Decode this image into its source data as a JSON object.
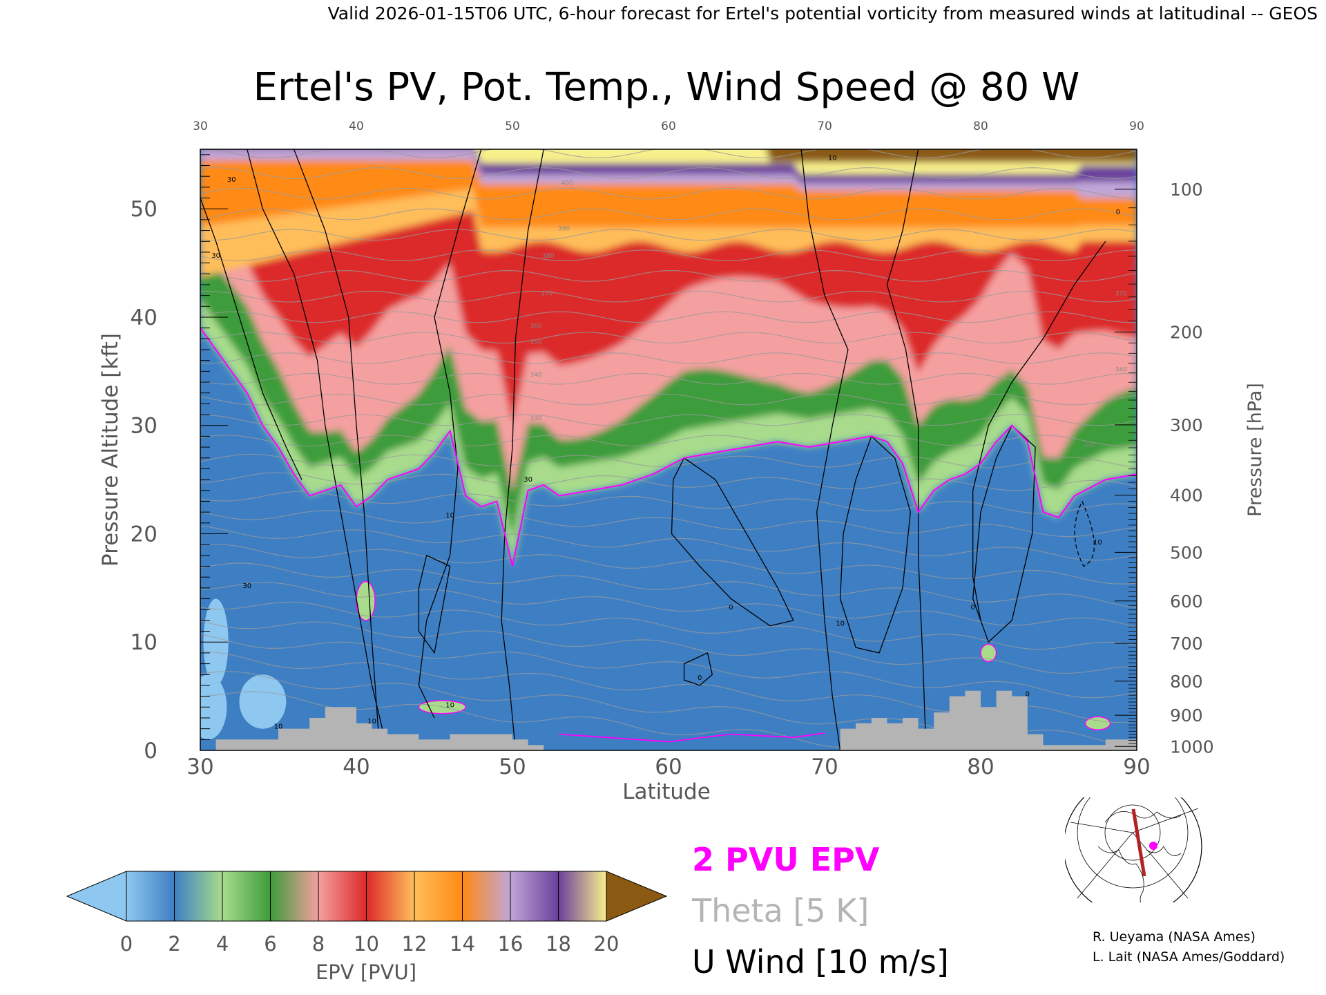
{
  "header": {
    "valid_line": "Valid 2026-01-15T06 UTC, 6-hour forecast for Ertel's potential vorticity from measured winds at latitudinal -- GEOS"
  },
  "chart_data": {
    "type": "heatmap",
    "title": "Ertel's PV, Pot. Temp., Wind Speed @ 80 W",
    "xlabel": "Latitude",
    "ylabel": "Pressure Altitude [kft]",
    "ylabel_right": "Pressure [hPa]",
    "xlim": [
      30,
      90
    ],
    "ylim": [
      0,
      55.5
    ],
    "x_ticks": [
      "30",
      "40",
      "50",
      "60",
      "70",
      "80",
      "90"
    ],
    "x_ticks_top": [
      "30",
      "40",
      "50",
      "60",
      "70",
      "80",
      "90"
    ],
    "y_ticks": [
      "0",
      "10",
      "20",
      "30",
      "40",
      "50"
    ],
    "pressure_ticks": [
      {
        "hpa": 100,
        "label": "100"
      },
      {
        "hpa": 200,
        "label": "200"
      },
      {
        "hpa": 300,
        "label": "300"
      },
      {
        "hpa": 400,
        "label": "400"
      },
      {
        "hpa": 500,
        "label": "500"
      },
      {
        "hpa": 600,
        "label": "600"
      },
      {
        "hpa": 700,
        "label": "700"
      },
      {
        "hpa": 800,
        "label": "800"
      },
      {
        "hpa": 900,
        "label": "900"
      },
      {
        "hpa": 1000,
        "label": "1000"
      }
    ],
    "epv_colors": [
      "#8ec8f0",
      "#3e7fc4",
      "#a8dc8c",
      "#3d9c3a",
      "#f5a0a0",
      "#dc2a2a",
      "#ffbe5a",
      "#ff8a14",
      "#c0a6d8",
      "#6a3f9c",
      "#f8f08c",
      "#8a5a12"
    ],
    "epv_levels": [
      0,
      2,
      4,
      6,
      8,
      10,
      12,
      14,
      16,
      18,
      20
    ],
    "epv_2pvu_height_kft": [
      [
        30,
        39
      ],
      [
        31,
        37
      ],
      [
        32,
        35
      ],
      [
        33,
        33
      ],
      [
        34,
        30
      ],
      [
        35,
        28
      ],
      [
        36,
        25.5
      ],
      [
        37,
        23.5
      ],
      [
        38,
        24
      ],
      [
        39,
        24.5
      ],
      [
        40,
        22.5
      ],
      [
        41,
        23.5
      ],
      [
        42,
        25
      ],
      [
        43,
        25.5
      ],
      [
        44,
        26
      ],
      [
        45,
        27.5
      ],
      [
        46,
        29.5
      ],
      [
        47,
        23.5
      ],
      [
        48,
        22.5
      ],
      [
        49,
        23
      ],
      [
        50,
        17
      ],
      [
        51,
        24
      ],
      [
        52,
        24.5
      ],
      [
        53,
        23.5
      ],
      [
        55,
        24
      ],
      [
        57,
        24.5
      ],
      [
        59,
        25.5
      ],
      [
        61,
        27
      ],
      [
        63,
        27.5
      ],
      [
        65,
        28
      ],
      [
        67,
        28.5
      ],
      [
        69,
        28
      ],
      [
        71,
        28.5
      ],
      [
        73,
        29
      ],
      [
        74,
        28.5
      ],
      [
        75,
        26.5
      ],
      [
        76,
        22
      ],
      [
        77,
        24
      ],
      [
        78,
        25
      ],
      [
        79,
        25.5
      ],
      [
        80,
        26.5
      ],
      [
        81,
        28.5
      ],
      [
        82,
        30
      ],
      [
        83,
        28.5
      ],
      [
        84,
        22
      ],
      [
        85,
        21.5
      ],
      [
        86,
        23.5
      ],
      [
        88,
        25
      ],
      [
        90,
        25.5
      ]
    ],
    "theta_labels": [
      "330",
      "340",
      "350",
      "360",
      "370",
      "380",
      "390",
      "400"
    ],
    "u_wind_labels": [
      "0",
      "10",
      "30"
    ],
    "terrain_kft": [
      [
        30,
        0
      ],
      [
        31,
        1
      ],
      [
        34,
        1
      ],
      [
        35,
        2
      ],
      [
        37,
        3
      ],
      [
        38,
        4
      ],
      [
        39,
        4
      ],
      [
        40,
        2.5
      ],
      [
        41,
        2
      ],
      [
        42,
        1.5
      ],
      [
        44,
        1
      ],
      [
        46,
        1.5
      ],
      [
        48,
        1.5
      ],
      [
        50,
        1
      ],
      [
        51,
        0.5
      ],
      [
        52,
        0
      ],
      [
        70,
        0
      ],
      [
        71,
        2
      ],
      [
        72,
        2.5
      ],
      [
        73,
        3
      ],
      [
        74,
        2.5
      ],
      [
        75,
        3
      ],
      [
        76,
        2
      ],
      [
        77,
        3.5
      ],
      [
        78,
        5
      ],
      [
        79,
        5.5
      ],
      [
        80,
        4
      ],
      [
        81,
        5.5
      ],
      [
        82,
        5
      ],
      [
        83,
        1.5
      ],
      [
        84,
        0.5
      ],
      [
        86,
        0.5
      ],
      [
        88,
        1
      ],
      [
        90,
        0
      ]
    ]
  },
  "colorbar": {
    "tick_labels": [
      "0",
      "2",
      "4",
      "6",
      "8",
      "10",
      "12",
      "14",
      "16",
      "18",
      "20"
    ],
    "label": "EPV [PVU]"
  },
  "legend": {
    "pvu2": "2 PVU EPV",
    "pvu2_color": "#ff00ff",
    "theta": "Theta [5 K]",
    "theta_color": "#b4b4b4",
    "uwind": "U Wind [10 m/s]"
  },
  "credits": {
    "line1": "R. Ueyama (NASA Ames)",
    "line2": "L. Lait (NASA Ames/Goddard)"
  }
}
